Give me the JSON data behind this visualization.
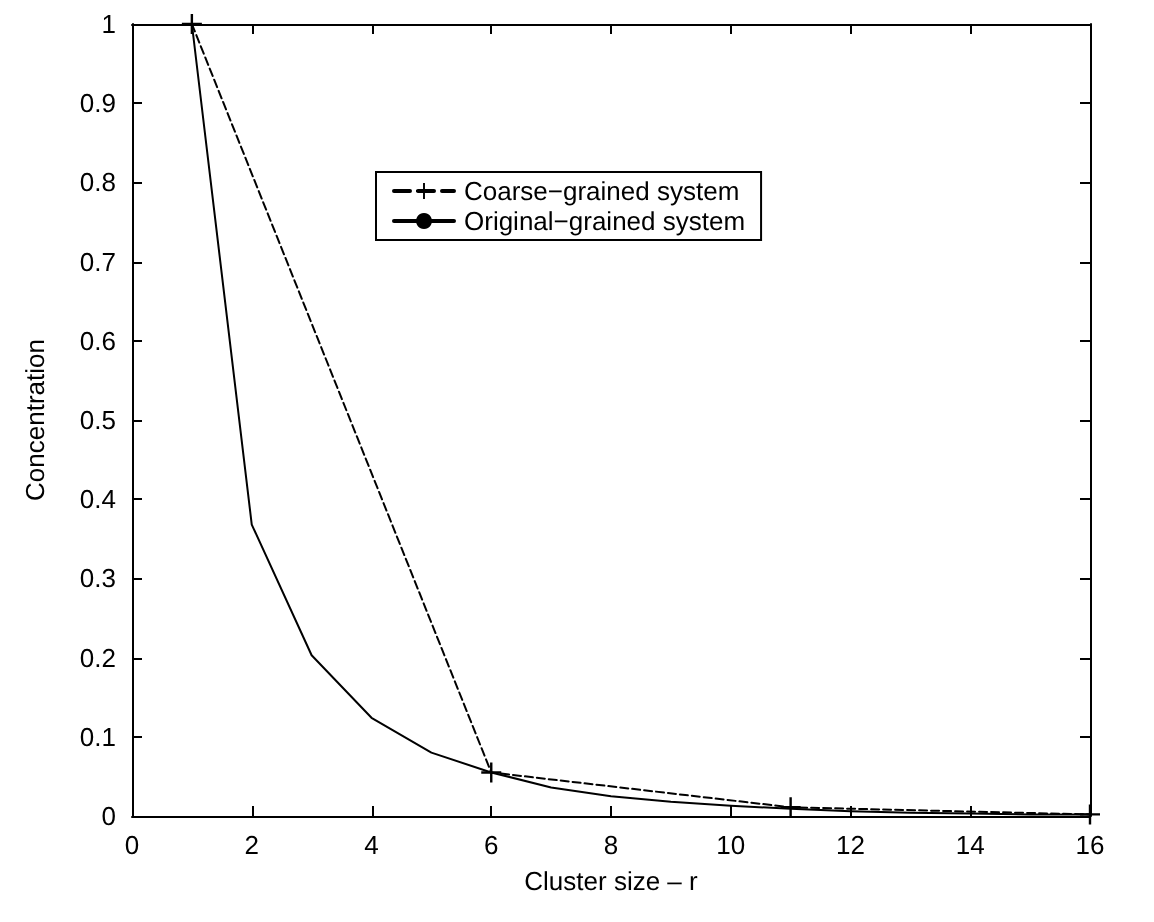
{
  "chart_data": {
    "type": "line",
    "xlabel": "Cluster size – r",
    "ylabel": "Concentration",
    "x": [
      1,
      2,
      3,
      4,
      5,
      6,
      7,
      8,
      9,
      10,
      11,
      12,
      13,
      14,
      15,
      16
    ],
    "series": [
      {
        "name": "Coarse−grained system",
        "color": "#000000",
        "x": [
          1,
          6,
          11,
          16
        ],
        "values": [
          1,
          0.055,
          0.011,
          0.002
        ],
        "marker": "cross",
        "line_style": "dashed"
      },
      {
        "name": "Original−grained system",
        "color": "#000000",
        "values": [
          1,
          0.368,
          0.203,
          0.124,
          0.08,
          0.055,
          0.036,
          0.025,
          0.018,
          0.013,
          0.009,
          0.006,
          0.004,
          0.003,
          0.002,
          0.002
        ],
        "marker": "none",
        "line_style": "solid"
      }
    ],
    "xlim": [
      0,
      16
    ],
    "xticks": [
      0,
      2,
      4,
      6,
      8,
      10,
      12,
      14,
      16
    ],
    "ylim": [
      0,
      1
    ],
    "yticks": [
      0,
      0.1,
      0.2,
      0.3,
      0.4,
      0.5,
      0.6,
      0.7,
      0.8,
      0.9,
      1
    ],
    "grid": false,
    "legend": "top"
  }
}
